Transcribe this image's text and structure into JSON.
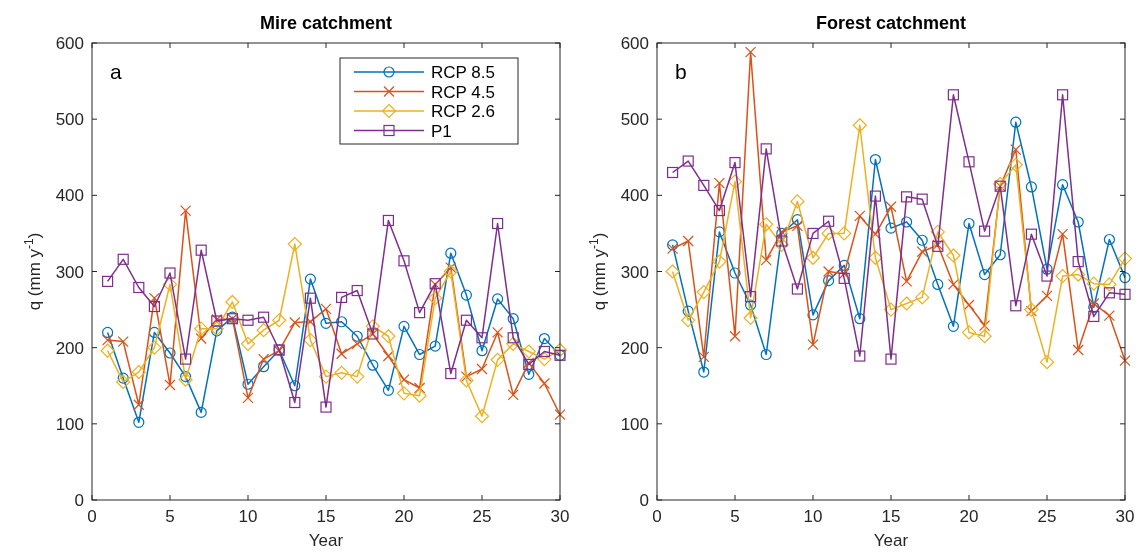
{
  "chart_data": [
    {
      "type": "line",
      "title": "Mire catchment",
      "xlabel": "Year",
      "ylabel": "q (mm y$^{-1}$)",
      "annotations": [
        "a"
      ],
      "legend": "top right",
      "x": [
        1,
        2,
        3,
        4,
        5,
        6,
        7,
        8,
        9,
        10,
        11,
        12,
        13,
        14,
        15,
        16,
        17,
        18,
        19,
        20,
        21,
        22,
        23,
        24,
        25,
        26,
        27,
        28,
        29,
        30
      ],
      "xlim": [
        0,
        30
      ],
      "xticks": [
        0,
        5,
        10,
        15,
        20,
        25,
        30
      ],
      "ylim": [
        0,
        600
      ],
      "yticks": [
        0,
        100,
        200,
        300,
        400,
        500,
        600
      ],
      "series": [
        {
          "name": "RCP 8.5",
          "color": "#0072bd",
          "marker": "circle",
          "values": [
            220,
            160,
            102,
            220,
            193,
            162,
            115,
            222,
            240,
            152,
            175,
            197,
            150,
            290,
            232,
            234,
            215,
            177,
            144,
            228,
            191,
            202,
            324,
            269,
            196,
            264,
            238,
            165,
            212,
            190
          ]
        },
        {
          "name": "RCP 4.5",
          "color": "#d95319",
          "marker": "cross",
          "values": [
            210,
            208,
            125,
            265,
            151,
            380,
            212,
            237,
            238,
            134,
            185,
            196,
            233,
            234,
            251,
            192,
            205,
            218,
            189,
            158,
            147,
            283,
            305,
            162,
            172,
            220,
            138,
            180,
            153,
            112
          ]
        },
        {
          "name": "RCP 2.6",
          "color": "#edb120",
          "marker": "diamond",
          "values": [
            196,
            155,
            168,
            200,
            283,
            158,
            225,
            225,
            260,
            205,
            223,
            236,
            336,
            210,
            162,
            167,
            162,
            228,
            215,
            140,
            137,
            265,
            300,
            157,
            110,
            184,
            205,
            195,
            185,
            197
          ]
        },
        {
          "name": "P1",
          "color": "#7e2f8e",
          "marker": "square",
          "values": [
            287,
            316,
            279,
            254,
            298,
            185,
            328,
            235,
            238,
            236,
            240,
            197,
            128,
            265,
            122,
            266,
            275,
            218,
            367,
            314,
            246,
            284,
            166,
            236,
            213,
            363,
            213,
            178,
            195,
            190
          ]
        }
      ]
    },
    {
      "type": "line",
      "title": "Forest catchment",
      "xlabel": "Year",
      "ylabel": "q (mm y$^{-1}$)",
      "annotations": [
        "b"
      ],
      "x": [
        1,
        2,
        3,
        4,
        5,
        6,
        7,
        8,
        9,
        10,
        11,
        12,
        13,
        14,
        15,
        16,
        17,
        18,
        19,
        20,
        21,
        22,
        23,
        24,
        25,
        26,
        27,
        28,
        29,
        30
      ],
      "xlim": [
        0,
        30
      ],
      "xticks": [
        0,
        5,
        10,
        15,
        20,
        25,
        30
      ],
      "ylim": [
        0,
        600
      ],
      "yticks": [
        0,
        100,
        200,
        300,
        400,
        500,
        600
      ],
      "series": [
        {
          "color": "#0072bd",
          "marker": "circle",
          "values": [
            335,
            248,
            168,
            352,
            298,
            256,
            191,
            350,
            368,
            243,
            288,
            308,
            238,
            447,
            357,
            365,
            341,
            283,
            228,
            363,
            296,
            322,
            496,
            411,
            303,
            414,
            365,
            253,
            342,
            292
          ]
        },
        {
          "color": "#d95319",
          "marker": "cross",
          "values": [
            330,
            340,
            188,
            416,
            215,
            588,
            315,
            352,
            360,
            204,
            300,
            297,
            373,
            349,
            385,
            287,
            326,
            335,
            283,
            256,
            229,
            412,
            460,
            248,
            268,
            349,
            197,
            258,
            242,
            183
          ]
        },
        {
          "color": "#edb120",
          "marker": "diamond",
          "values": [
            300,
            236,
            273,
            313,
            418,
            239,
            362,
            335,
            392,
            318,
            350,
            350,
            492,
            318,
            250,
            258,
            266,
            352,
            321,
            220,
            215,
            415,
            440,
            250,
            181,
            294,
            296,
            284,
            283,
            317
          ]
        },
        {
          "color": "#7e2f8e",
          "marker": "square",
          "values": [
            430,
            445,
            413,
            380,
            443,
            267,
            461,
            340,
            277,
            350,
            366,
            291,
            189,
            399,
            185,
            398,
            395,
            333,
            532,
            444,
            353,
            412,
            255,
            349,
            294,
            532,
            313,
            241,
            272,
            270
          ]
        }
      ]
    }
  ]
}
